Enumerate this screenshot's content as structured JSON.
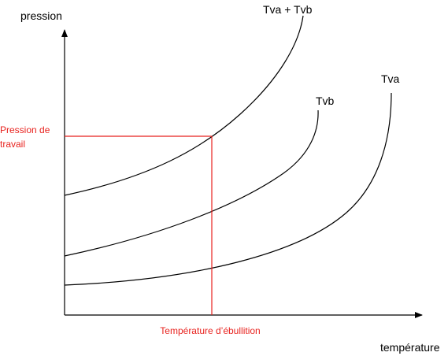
{
  "axes": {
    "y_label": "pression",
    "x_label": "température"
  },
  "curves": [
    {
      "label": "Tva + Tvb"
    },
    {
      "label": "Tvb"
    },
    {
      "label": "Tva"
    }
  ],
  "annotations": {
    "pressure_lines": [
      "Pression de",
      "travail"
    ],
    "temperature": "Température d’ébullition"
  }
}
